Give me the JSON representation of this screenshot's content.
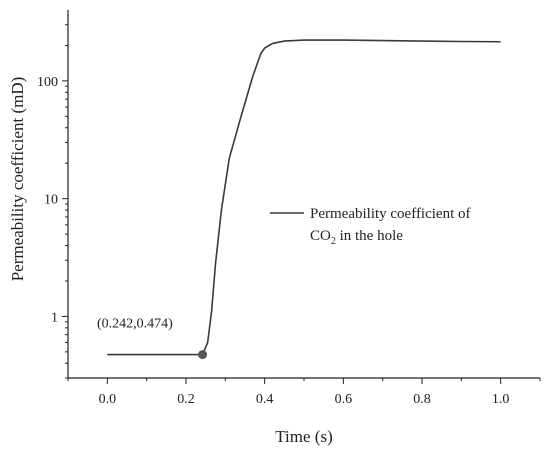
{
  "chart_data": {
    "type": "line",
    "xlabel": "Time (s)",
    "ylabel": "Permeability coefficient (mD)",
    "yscale": "log",
    "xlim": [
      -0.1,
      1.1
    ],
    "ylim": [
      0.3,
      400
    ],
    "x_ticks": [
      {
        "value": 0.0,
        "label": "0.0"
      },
      {
        "value": 0.2,
        "label": "0.2"
      },
      {
        "value": 0.4,
        "label": "0.4"
      },
      {
        "value": 0.6,
        "label": "0.6"
      },
      {
        "value": 0.8,
        "label": "0.8"
      },
      {
        "value": 1.0,
        "label": "1.0"
      }
    ],
    "y_ticks": [
      {
        "value": 1,
        "label": "1"
      },
      {
        "value": 10,
        "label": "10"
      },
      {
        "value": 100,
        "label": "100"
      }
    ],
    "grid": false,
    "legend_position": "center-right",
    "series": [
      {
        "name_parts": [
          "Permeability coefficient of",
          "CO",
          "2",
          " in the hole"
        ],
        "color": "#3a3a3a",
        "x": [
          0.0,
          0.1,
          0.2,
          0.242,
          0.255,
          0.265,
          0.275,
          0.29,
          0.31,
          0.34,
          0.37,
          0.39,
          0.4,
          0.42,
          0.45,
          0.5,
          0.6,
          0.7,
          0.8,
          0.9,
          1.0
        ],
        "y": [
          0.474,
          0.474,
          0.474,
          0.474,
          0.6,
          1.1,
          2.8,
          8,
          22,
          50,
          110,
          170,
          190,
          208,
          218,
          222,
          222,
          220,
          218,
          216,
          215
        ]
      }
    ],
    "annotations": [
      {
        "x": 0.242,
        "y": 0.474,
        "label": "(0.242,0.474)",
        "marker": "dot"
      }
    ]
  }
}
